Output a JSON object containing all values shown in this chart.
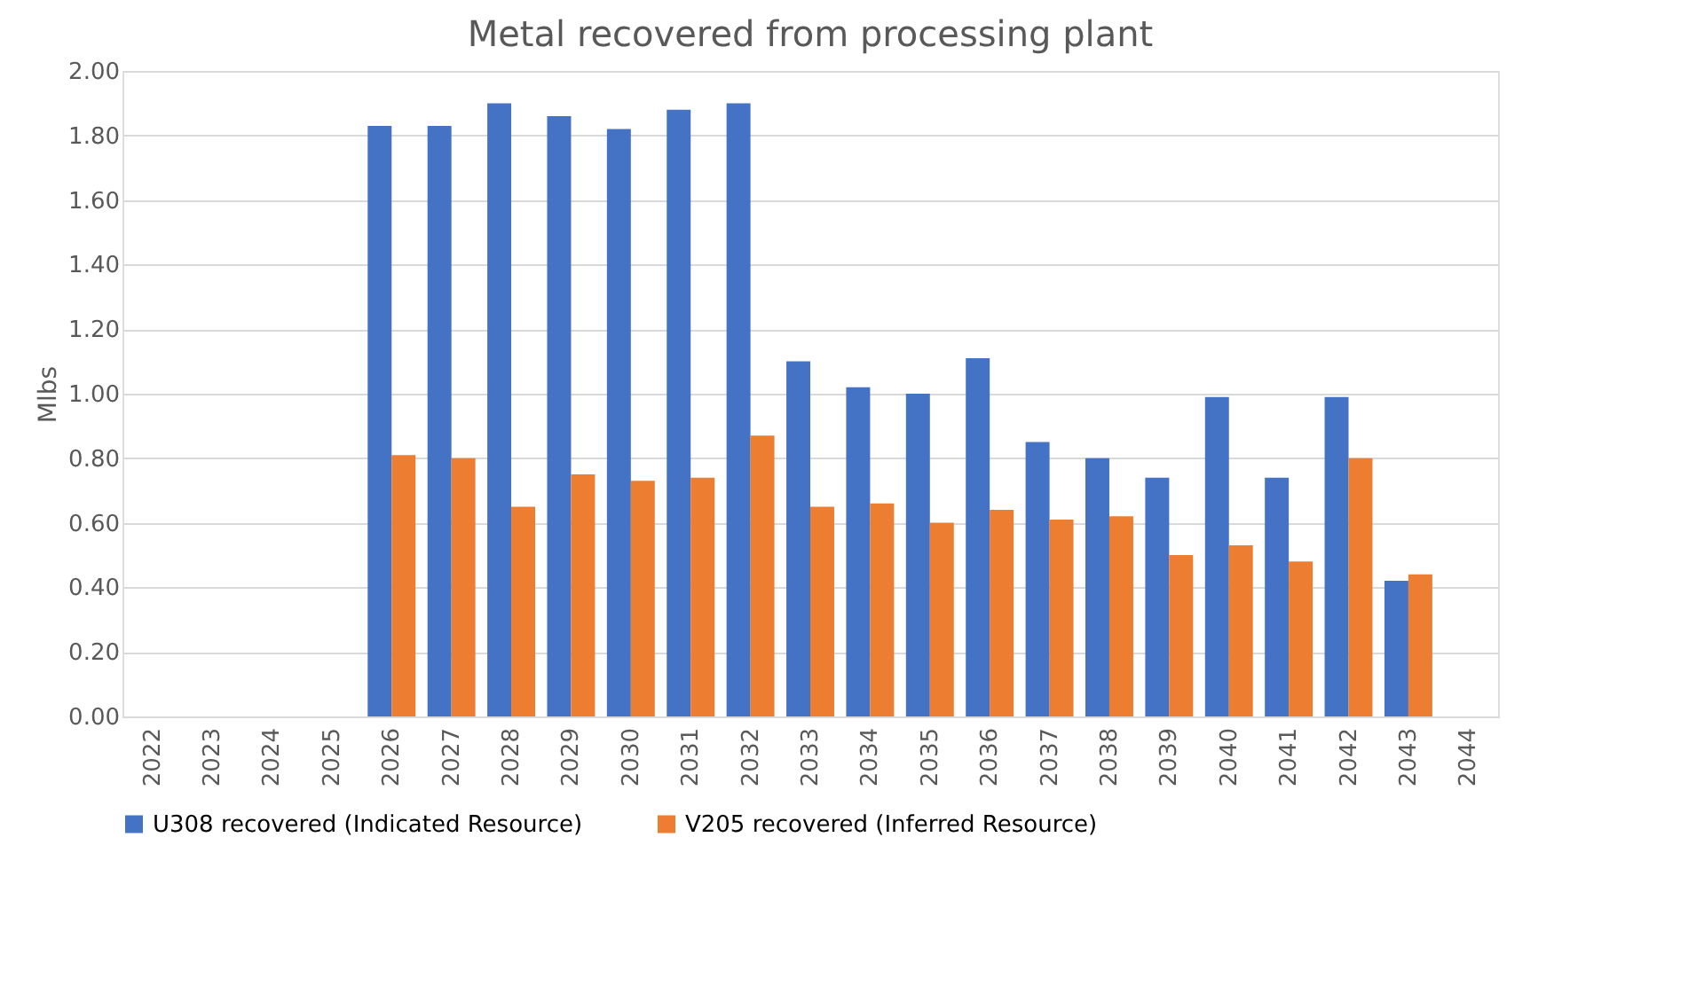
{
  "chart_data": {
    "type": "bar",
    "title": "Metal recovered from processing plant",
    "ylabel": "Mlbs",
    "categories": [
      "2022",
      "2023",
      "2024",
      "2025",
      "2026",
      "2027",
      "2028",
      "2029",
      "2030",
      "2031",
      "2032",
      "2033",
      "2034",
      "2035",
      "2036",
      "2037",
      "2038",
      "2039",
      "2040",
      "2041",
      "2042",
      "2043",
      "2044"
    ],
    "series": [
      {
        "name": "U308 recovered (Indicated Resource)",
        "color": "#4472c4",
        "values": [
          null,
          null,
          null,
          null,
          1.83,
          1.83,
          1.9,
          1.86,
          1.82,
          1.88,
          1.9,
          1.1,
          1.02,
          1.0,
          1.11,
          0.85,
          0.8,
          0.74,
          0.99,
          0.74,
          0.99,
          0.42,
          null
        ]
      },
      {
        "name": "V205 recovered (Inferred Resource)",
        "color": "#ed7d31",
        "values": [
          null,
          null,
          null,
          null,
          0.81,
          0.8,
          0.65,
          0.75,
          0.73,
          0.74,
          0.87,
          0.65,
          0.66,
          0.6,
          0.64,
          0.61,
          0.62,
          0.5,
          0.53,
          0.48,
          0.8,
          0.44,
          null
        ]
      }
    ],
    "ylim": [
      0,
      2
    ],
    "yticks": [
      {
        "value": 0,
        "label": "0.00"
      },
      {
        "value": 0.2,
        "label": "0.20"
      },
      {
        "value": 0.4,
        "label": "0.40"
      },
      {
        "value": 0.6,
        "label": "0.60"
      },
      {
        "value": 0.8,
        "label": "0.80"
      },
      {
        "value": 1,
        "label": "1.00"
      },
      {
        "value": 1.2,
        "label": "1.20"
      },
      {
        "value": 1.4,
        "label": "1.40"
      },
      {
        "value": 1.6,
        "label": "1.60"
      },
      {
        "value": 1.8,
        "label": "1.80"
      },
      {
        "value": 2,
        "label": "2.00"
      }
    ],
    "grid": "y",
    "legend": "bottom"
  }
}
